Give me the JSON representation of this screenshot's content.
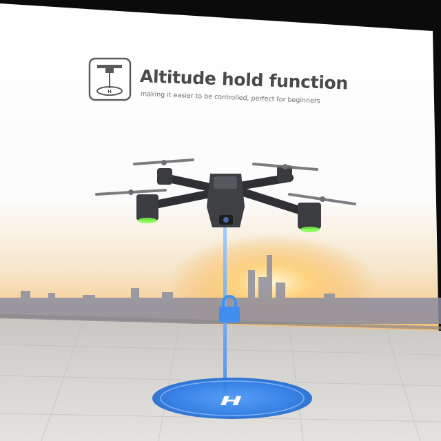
{
  "feature": {
    "title": "Altitude hold function",
    "subtitle": "making it easier to be controlled, perfect for beginners",
    "icon": "drone-hover-icon"
  },
  "landing_pad": {
    "letter": "H"
  },
  "colors": {
    "title_text": "#4a4a4a",
    "beam": "#3f8ef0",
    "landing_pad": "#2f7ee6",
    "sky_glow": "#f3a53a",
    "led_green": "#7dff4a"
  }
}
